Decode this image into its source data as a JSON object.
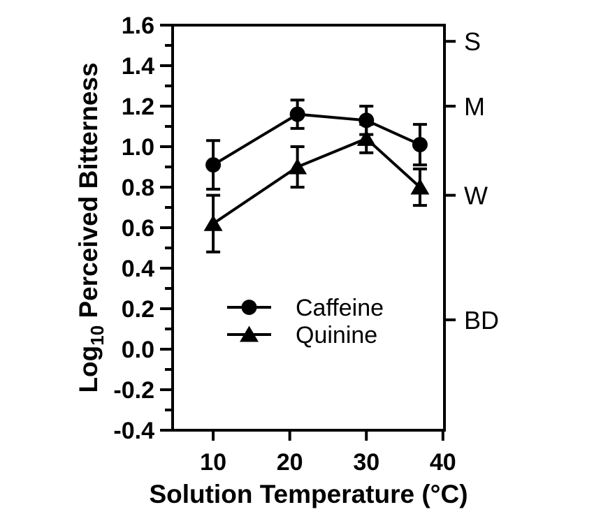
{
  "figure": {
    "background": "#ffffff",
    "ink_color": "#000000"
  },
  "chart_data": {
    "type": "line",
    "title": "",
    "xlabel": "Solution Temperature (°C)",
    "ylabel": "Log10 Perceived Bitterness",
    "ylabel_rich": {
      "prefix": "Log",
      "subscript": "10",
      "suffix": " Perceived Bitterness"
    },
    "x": [
      10,
      21,
      30,
      37
    ],
    "series": [
      {
        "name": "Caffeine",
        "marker": "circle",
        "values": [
          0.91,
          1.16,
          1.13,
          1.01
        ],
        "errors": [
          0.12,
          0.07,
          0.07,
          0.1
        ]
      },
      {
        "name": "Quinine",
        "marker": "triangle",
        "values": [
          0.62,
          0.9,
          1.04,
          0.8
        ],
        "errors": [
          0.14,
          0.1,
          0.07,
          0.09
        ]
      }
    ],
    "xlim": [
      4.7,
      40.2
    ],
    "ylim": [
      -0.4,
      1.6
    ],
    "x_ticks": [
      10,
      20,
      30,
      40
    ],
    "y_ticks": [
      -0.4,
      -0.2,
      0.0,
      0.2,
      0.4,
      0.6,
      0.8,
      1.0,
      1.2,
      1.4,
      1.6
    ],
    "y_minor_ticks": [
      -0.3,
      -0.1,
      0.1,
      0.3,
      0.5,
      0.7,
      0.9,
      1.1,
      1.3,
      1.5
    ],
    "right_axis": {
      "ticks": [
        {
          "label": "S",
          "value": 1.52
        },
        {
          "label": "M",
          "value": 1.2
        },
        {
          "label": "W",
          "value": 0.76
        },
        {
          "label": "BD",
          "value": 0.145
        }
      ]
    },
    "legend": {
      "entries": [
        {
          "label": "Caffeine",
          "marker": "circle"
        },
        {
          "label": "Quinine",
          "marker": "triangle"
        }
      ],
      "position": "inside-lower-left"
    },
    "grid": false
  }
}
